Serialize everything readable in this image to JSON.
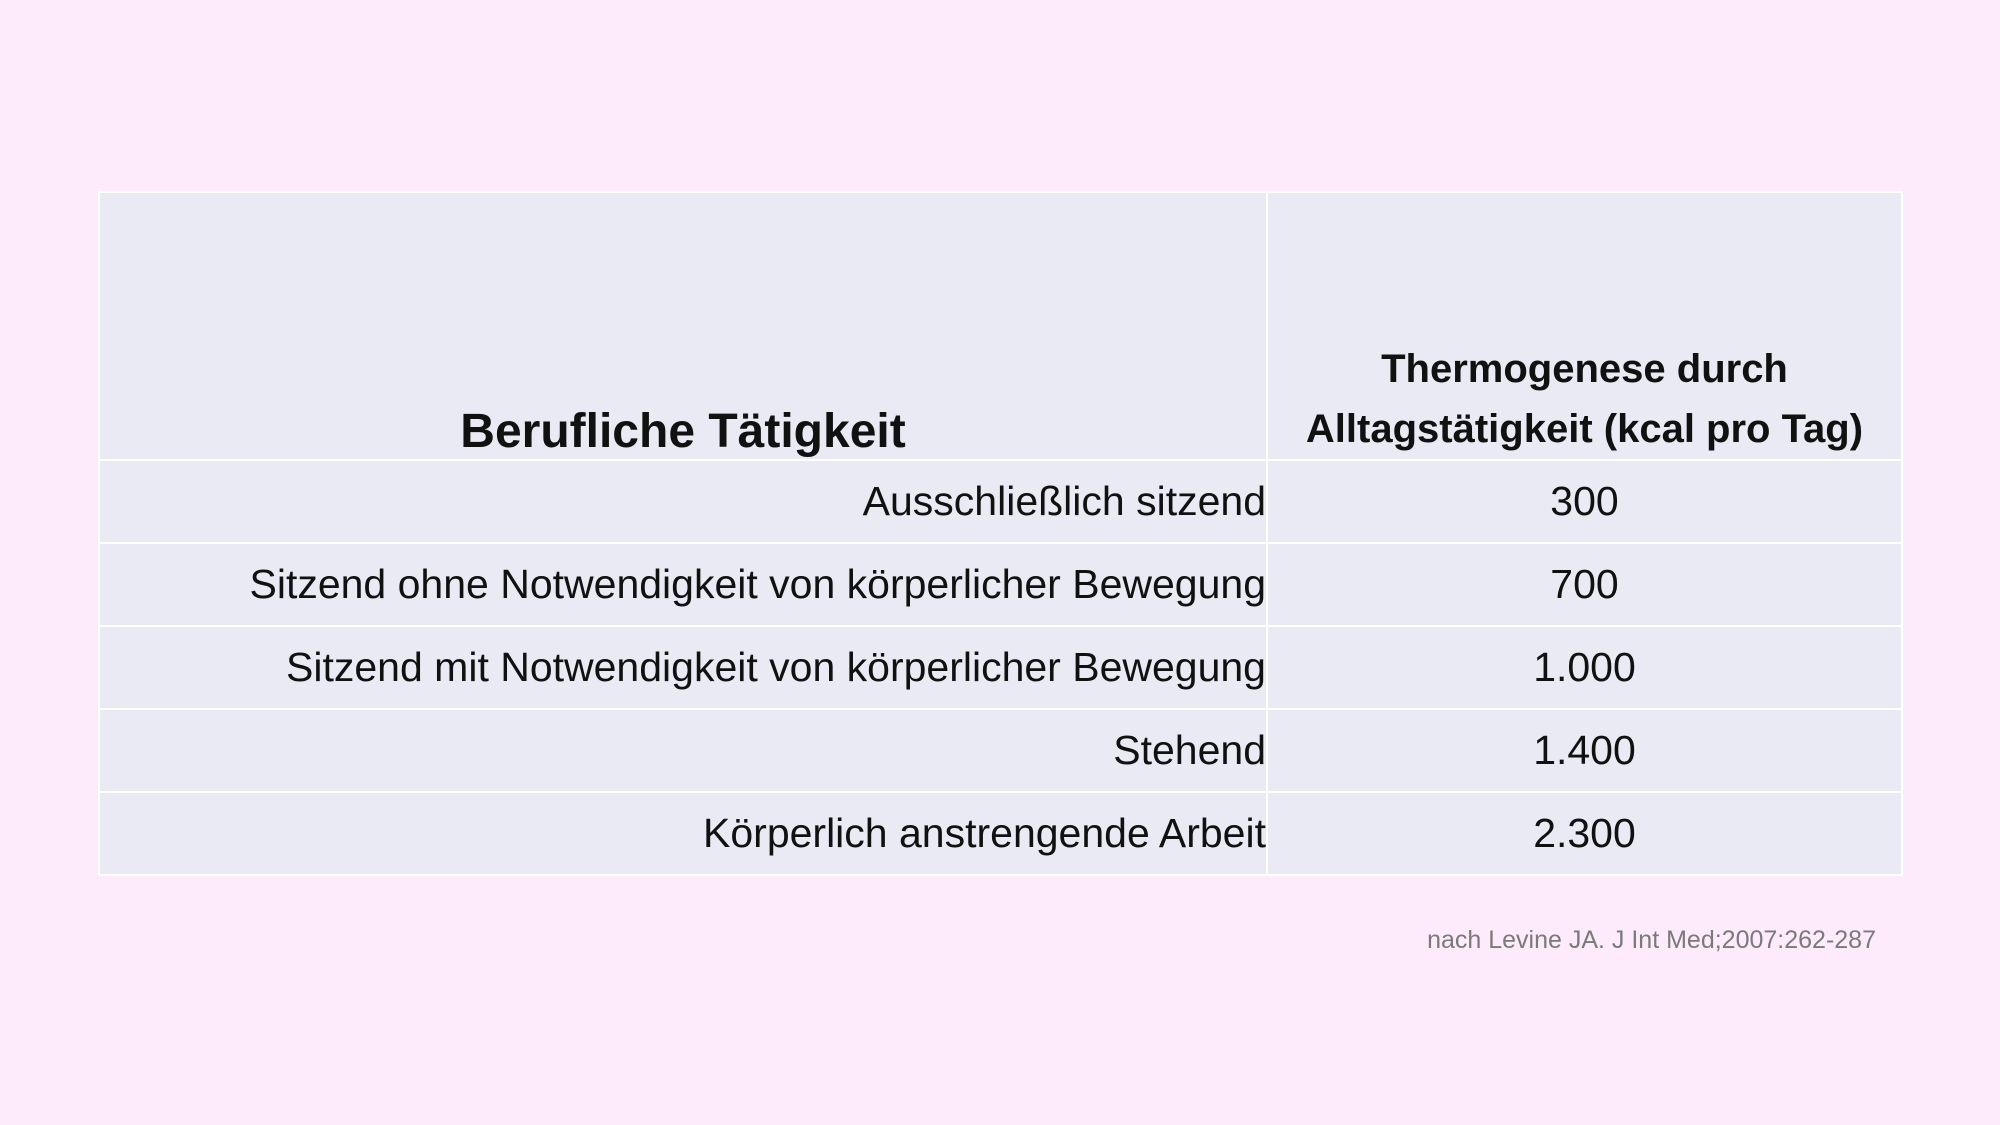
{
  "table": {
    "headers": {
      "activity": "Berufliche Tätigkeit",
      "thermo_line1": "Thermogenese durch",
      "thermo_line2": "Alltagstätigkeit (kcal pro Tag)"
    },
    "rows": [
      {
        "activity": "Ausschließlich sitzend",
        "value": "300"
      },
      {
        "activity": "Sitzend ohne Notwendigkeit von körperlicher Bewegung",
        "value": "700"
      },
      {
        "activity": "Sitzend mit Notwendigkeit von körperlicher Bewegung",
        "value": "1.000"
      },
      {
        "activity": "Stehend",
        "value": "1.400"
      },
      {
        "activity": "Körperlich anstrengende Arbeit",
        "value": "2.300"
      }
    ]
  },
  "source": "nach Levine JA. J Int Med;2007:262-287",
  "colors": {
    "background": "#fdebfb",
    "cell_fill": "#e9eaf3",
    "cell_border": "#ffffff",
    "source_text": "#7a7a7a"
  }
}
